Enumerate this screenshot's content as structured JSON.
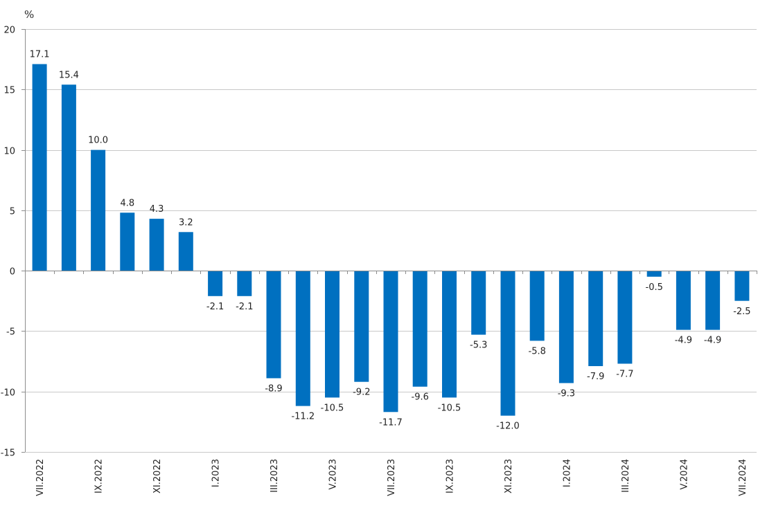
{
  "chart_data": {
    "type": "bar",
    "unit_label": "%",
    "title": "",
    "xlabel": "",
    "ylabel": "",
    "ylim": [
      -15,
      20
    ],
    "yticks": [
      20,
      15,
      10,
      5,
      0,
      -5,
      -10,
      -15
    ],
    "ytick_labels": [
      "20",
      "15",
      "10",
      "5",
      "0",
      "-5",
      "-10",
      "-15"
    ],
    "grid": true,
    "bar_color": "#0070c0",
    "categories": [
      "VII.2022",
      "VIII.2022",
      "IX.2022",
      "X.2022",
      "XI.2022",
      "XII.2022",
      "I.2023",
      "II.2023",
      "III.2023",
      "IV.2023",
      "V.2023",
      "VI.2023",
      "VII.2023",
      "VIII.2023",
      "IX.2023",
      "X.2023",
      "XI.2023",
      "XII.2023",
      "I.2024",
      "II.2024",
      "III.2024",
      "IV.2024",
      "V.2024",
      "VI.2024",
      "VII.2024"
    ],
    "category_labels_shown": [
      "VII.2022",
      "",
      "IX.2022",
      "",
      "XI.2022",
      "",
      "I.2023",
      "",
      "III.2023",
      "",
      "V.2023",
      "",
      "VII.2023",
      "",
      "IX.2023",
      "",
      "XI.2023",
      "",
      "I.2024",
      "",
      "III.2024",
      "",
      "V.2024",
      "",
      "VII.2024"
    ],
    "values": [
      17.1,
      15.4,
      10.0,
      4.8,
      4.3,
      3.2,
      -2.1,
      -2.1,
      -8.9,
      -11.2,
      -10.5,
      -9.2,
      -11.7,
      -9.6,
      -10.5,
      -5.3,
      -12.0,
      -5.8,
      -9.3,
      -7.9,
      -7.7,
      -0.5,
      -4.9,
      -4.9,
      -2.5
    ],
    "value_labels": [
      "17.1",
      "15.4",
      "10.0",
      "4.8",
      "4.3",
      "3.2",
      "-2.1",
      "-2.1",
      "-8.9",
      "-11.2",
      "-10.5",
      "-9.2",
      "-11.7",
      "-9.6",
      "-10.5",
      "-5.3",
      "-12.0",
      "-5.8",
      "-9.3",
      "-7.9",
      "-7.7",
      "-0.5",
      "-4.9",
      "-4.9",
      "-2.5"
    ]
  }
}
